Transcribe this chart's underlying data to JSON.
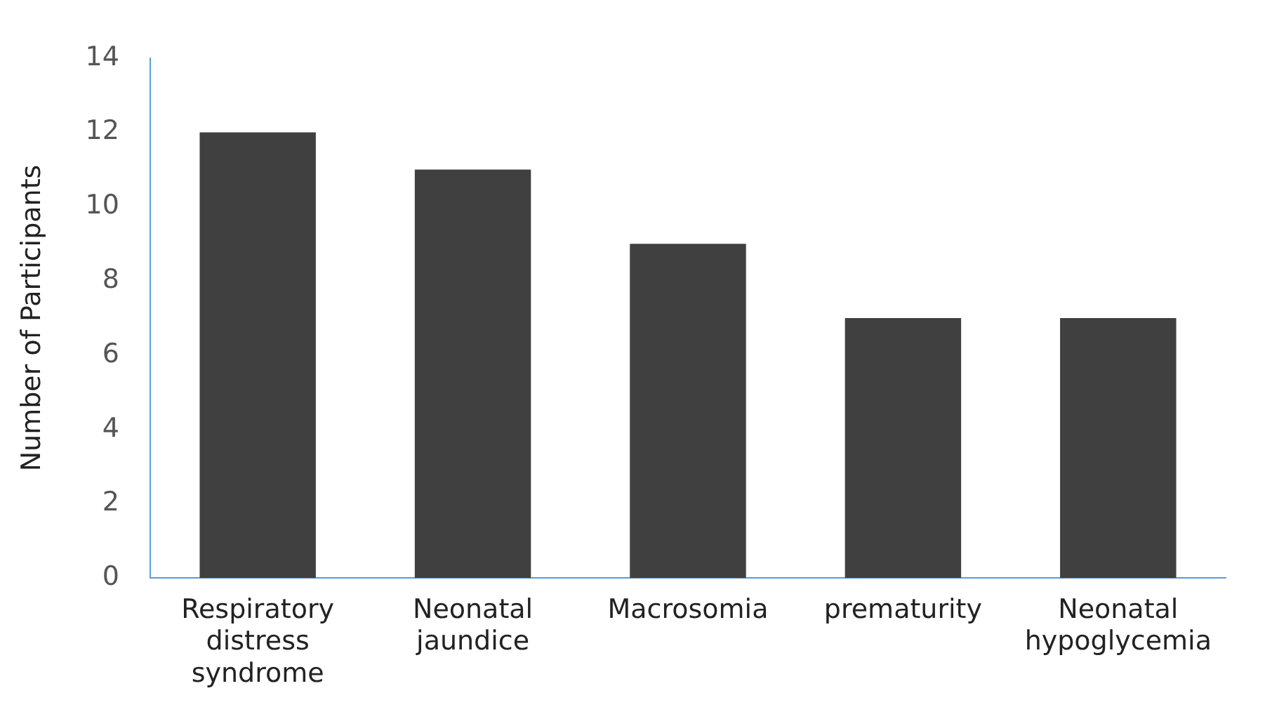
{
  "chart_data": {
    "type": "bar",
    "ylabel": "Number of Participants",
    "categories": [
      "Respiratory distress syndrome",
      "Neonatal jaundice",
      "Macrosomia",
      "prematurity",
      "Neonatal hypoglycemia"
    ],
    "values": [
      12,
      11,
      9,
      7,
      7
    ],
    "color": "#404040",
    "ylim": [
      0,
      14
    ],
    "yticks": [
      0,
      2,
      4,
      6,
      8,
      10,
      12,
      14
    ],
    "grid": false,
    "legend": false
  }
}
